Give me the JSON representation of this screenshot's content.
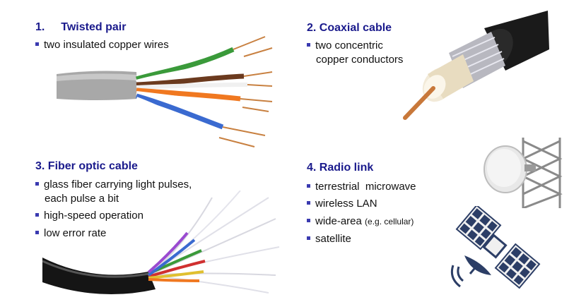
{
  "sections": {
    "twisted": {
      "number": "1.",
      "title": "Twisted pair",
      "bullets": [
        "two insulated copper wires"
      ]
    },
    "coax": {
      "title": "2. Coaxial cable",
      "bullets": [
        "two concentric",
        "copper conductors"
      ]
    },
    "fiber": {
      "title": "3. Fiber optic cable",
      "bullets": [
        "glass fiber carrying light pulses,",
        "each pulse a bit",
        "high-speed operation",
        "low error rate"
      ]
    },
    "radio": {
      "title": "4. Radio link",
      "bullets": [
        "terrestrial  microwave",
        "wireless LAN",
        "wide-area",
        "(e.g. cellular)",
        "satellite"
      ]
    }
  },
  "colors": {
    "heading": "#1a1a8c",
    "bullet": "#3a3ab0"
  },
  "icons": [
    "twisted-pair-cable-image",
    "coaxial-cable-image",
    "fiber-optic-cable-image",
    "microwave-dish-image",
    "satellite-image"
  ]
}
